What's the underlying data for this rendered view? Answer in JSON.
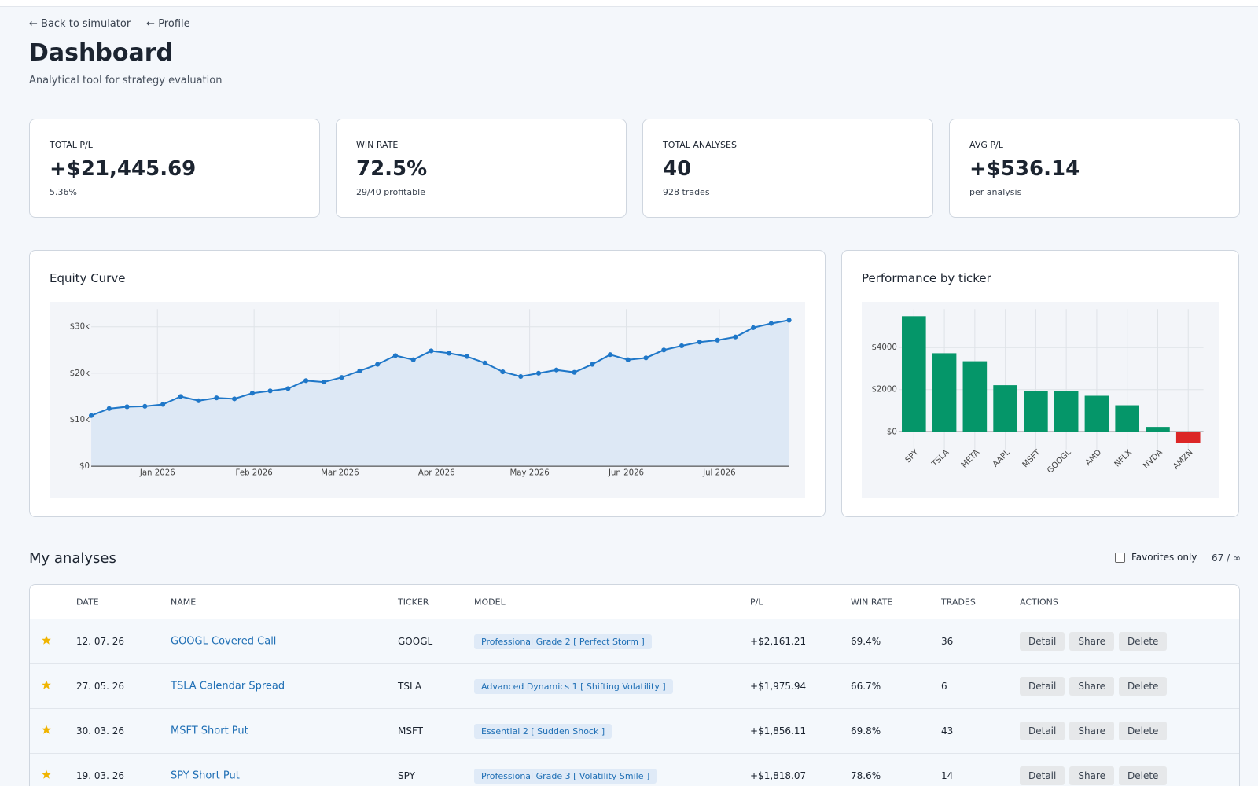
{
  "nav": [
    "← Back to simulator",
    "← Profile"
  ],
  "header": {
    "title": "Dashboard",
    "subtitle": "Analytical tool for strategy evaluation"
  },
  "stats": [
    {
      "label": "TOTAL P/L",
      "value": "+$21,445.69",
      "sub": "5.36%"
    },
    {
      "label": "WIN RATE",
      "value": "72.5%",
      "sub": "29/40 profitable"
    },
    {
      "label": "TOTAL ANALYSES",
      "value": "40",
      "sub": "928 trades"
    },
    {
      "label": "AVG P/L",
      "value": "+$536.14",
      "sub": "per analysis"
    }
  ],
  "chart_data": [
    {
      "type": "line",
      "title": "Equity Curve",
      "color": "#1f77c8",
      "area_color": "#dde8f5",
      "values": [
        10900,
        12400,
        12800,
        12900,
        13300,
        15000,
        14100,
        14700,
        14500,
        15700,
        16200,
        16700,
        18400,
        18100,
        19100,
        20500,
        21900,
        23800,
        22900,
        24800,
        24300,
        23600,
        22200,
        20300,
        19300,
        20000,
        20700,
        20200,
        21900,
        24000,
        22900,
        23300,
        25000,
        25900,
        26700,
        27100,
        27800,
        29800,
        30700,
        31400
      ],
      "xlim": [
        0,
        39
      ],
      "xticks": [
        {
          "value": 3.7,
          "label": "Jan 2026"
        },
        {
          "value": 9.1,
          "label": "Feb 2026"
        },
        {
          "value": 13.9,
          "label": "Mar 2026"
        },
        {
          "value": 19.3,
          "label": "Apr 2026"
        },
        {
          "value": 24.5,
          "label": "May 2026"
        },
        {
          "value": 29.9,
          "label": "Jun 2026"
        },
        {
          "value": 35.1,
          "label": "Jul 2026"
        }
      ],
      "ylim": [
        0,
        33800
      ],
      "yticks": [
        {
          "value": 0,
          "label": "$0"
        },
        {
          "value": 10000,
          "label": "$10k"
        },
        {
          "value": 20000,
          "label": "$20k"
        },
        {
          "value": 30000,
          "label": "$30k"
        }
      ],
      "grid": true
    },
    {
      "type": "bar",
      "title": "Performance by ticker",
      "categories": [
        "SPY",
        "TSLA",
        "META",
        "AAPL",
        "MSFT",
        "GOOGL",
        "AMD",
        "NFLX",
        "NVDA",
        "AMZN"
      ],
      "values": [
        5490,
        3730,
        3350,
        2210,
        1940,
        1940,
        1710,
        1260,
        230,
        -530
      ],
      "colors": [
        "#059669",
        "#059669",
        "#059669",
        "#059669",
        "#059669",
        "#059669",
        "#059669",
        "#059669",
        "#059669",
        "#dc2626"
      ],
      "ylim": [
        -840,
        5830
      ],
      "yticks": [
        {
          "value": 0,
          "label": "$0"
        },
        {
          "value": 2000,
          "label": "$2000"
        },
        {
          "value": 4000,
          "label": "$4000"
        }
      ],
      "grid": true
    }
  ],
  "analyses": {
    "title": "My analyses",
    "filter": "Favorites only",
    "count": "67 / ∞",
    "columns": [
      "DATE",
      "NAME",
      "TICKER",
      "MODEL",
      "P/L",
      "WIN RATE",
      "TRADES",
      "ACTIONS"
    ],
    "actions": [
      "Detail",
      "Share",
      "Delete"
    ],
    "rows": [
      {
        "date": "12. 07. 26",
        "name": "GOOGL Covered Call",
        "ticker": "GOOGL",
        "model": "Professional Grade 2 [ Perfect Storm ]",
        "pl": "+$2,161.21",
        "win_rate": "69.4%",
        "trades": "36"
      },
      {
        "date": "27. 05. 26",
        "name": "TSLA Calendar Spread",
        "ticker": "TSLA",
        "model": "Advanced Dynamics 1 [ Shifting Volatility ]",
        "pl": "+$1,975.94",
        "win_rate": "66.7%",
        "trades": "6"
      },
      {
        "date": "30. 03. 26",
        "name": "MSFT Short Put",
        "ticker": "MSFT",
        "model": "Essential 2 [ Sudden Shock ]",
        "pl": "+$1,856.11",
        "win_rate": "69.8%",
        "trades": "43"
      },
      {
        "date": "19. 03. 26",
        "name": "SPY Short Put",
        "ticker": "SPY",
        "model": "Professional Grade 3 [ Volatility Smile ]",
        "pl": "+$1,818.07",
        "win_rate": "78.6%",
        "trades": "14"
      }
    ]
  }
}
